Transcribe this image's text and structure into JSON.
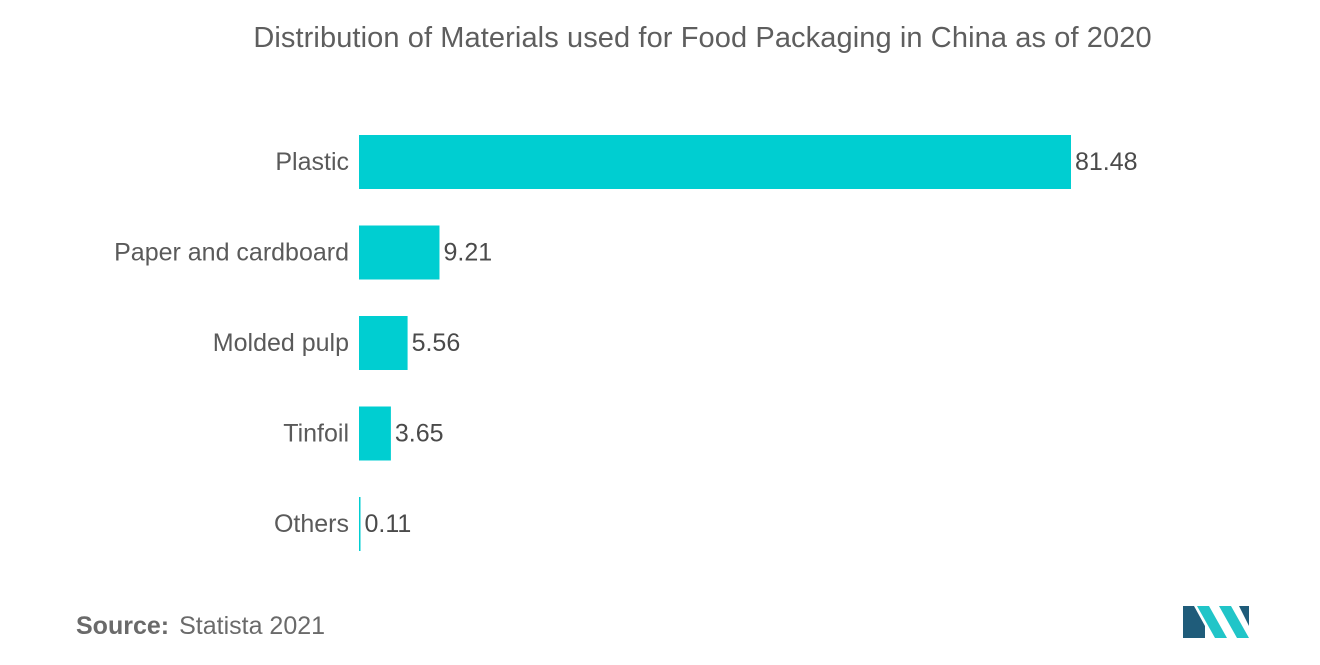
{
  "chart_data": {
    "type": "bar",
    "orientation": "horizontal",
    "title": "Distribution of Materials used for Food Packaging in China as of 2020",
    "categories": [
      "Plastic",
      "Paper and cardboard",
      "Molded pulp",
      "Tinfoil",
      "Others"
    ],
    "values": [
      81.48,
      9.21,
      5.56,
      3.65,
      0.11
    ],
    "value_labels": [
      "81.48",
      "9.21",
      "5.56",
      "3.65",
      "0.11"
    ],
    "xlabel": "",
    "ylabel": "",
    "xlim": [
      0,
      81.48
    ],
    "grid": false,
    "legend": "none",
    "bar_color": "#00CED1"
  },
  "source": {
    "label": "Source:",
    "text": "Statista 2021"
  },
  "logo": {
    "icon": "mordor-intelligence-logo-icon",
    "colors": [
      "#1F5C7A",
      "#21C5C8"
    ]
  }
}
